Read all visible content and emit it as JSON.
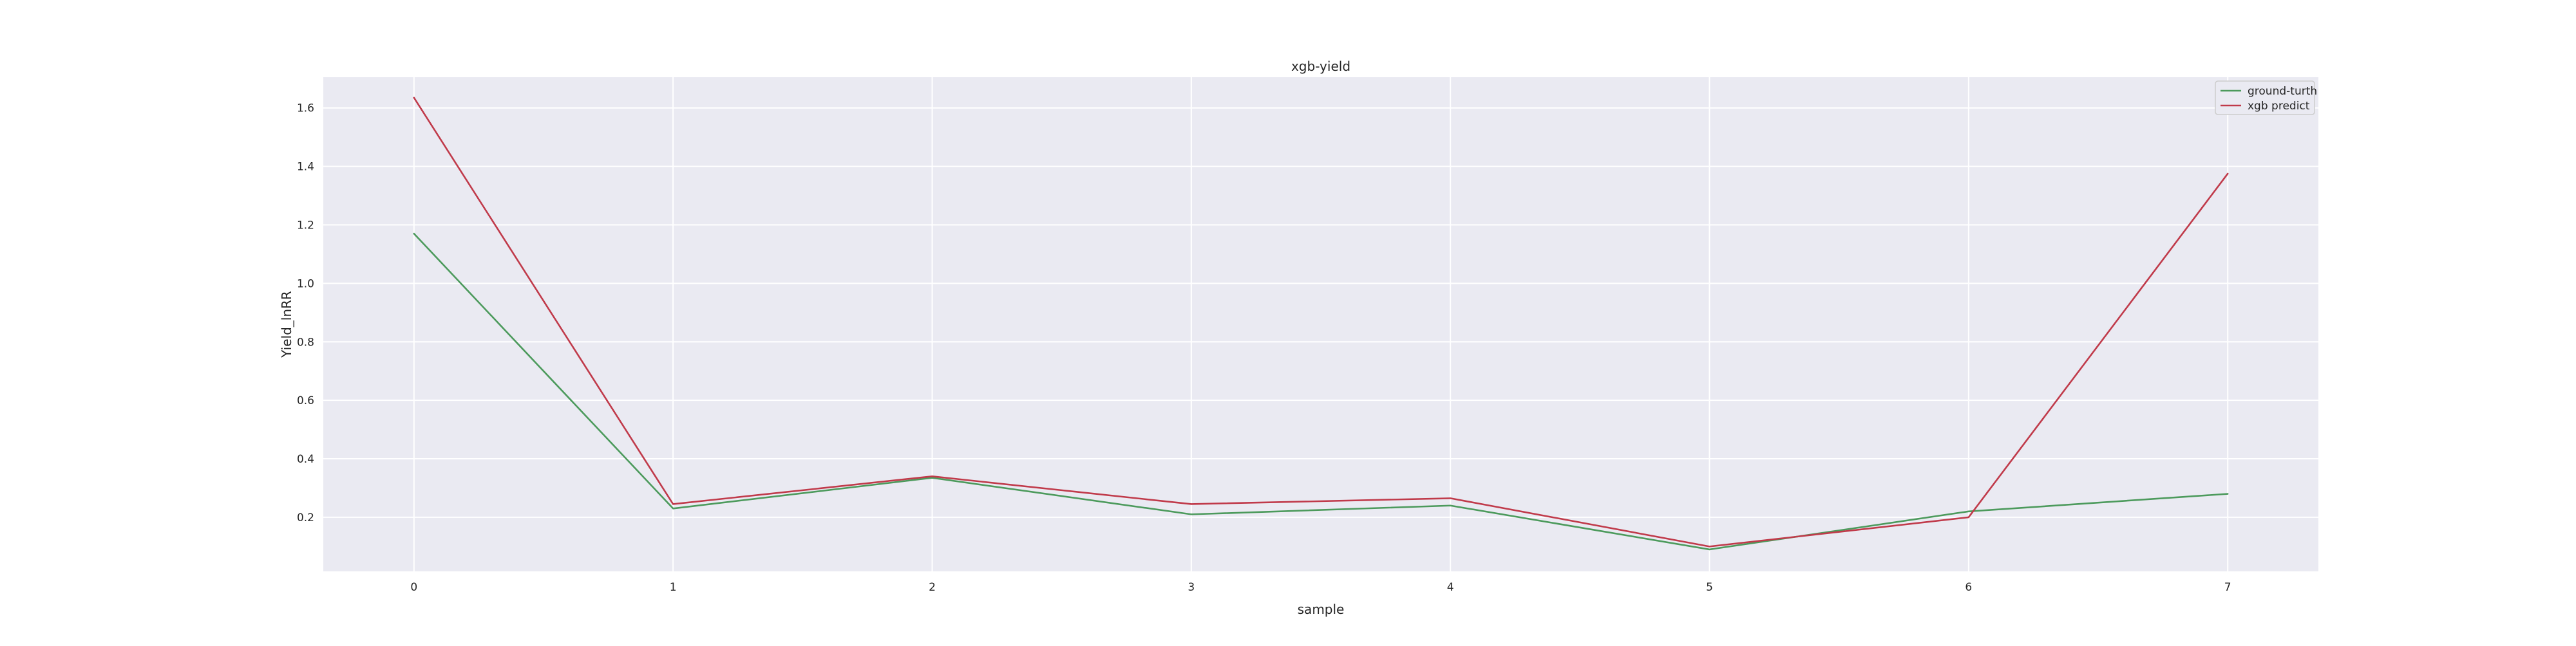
{
  "chart_data": {
    "type": "line",
    "title": "xgb-yield",
    "xlabel": "sample",
    "ylabel": "Yield_lnRR",
    "x": [
      0,
      1,
      2,
      3,
      4,
      5,
      6,
      7
    ],
    "series": [
      {
        "name": "ground-turth",
        "color": "#4c9a5c",
        "values": [
          1.17,
          0.23,
          0.335,
          0.21,
          0.24,
          0.09,
          0.22,
          0.28
        ]
      },
      {
        "name": "xgb predict",
        "color": "#c03a4a",
        "values": [
          1.635,
          0.245,
          0.34,
          0.245,
          0.265,
          0.1,
          0.2,
          1.375
        ]
      }
    ],
    "xlim": [
      -0.35,
      7.35
    ],
    "ylim": [
      0.015,
      1.705
    ],
    "xticks": [
      0,
      1,
      2,
      3,
      4,
      5,
      6,
      7
    ],
    "yticks": [
      0.2,
      0.4,
      0.6,
      0.8,
      1.0,
      1.2,
      1.4,
      1.6
    ],
    "ytick_labels": [
      "0.2",
      "0.4",
      "0.6",
      "0.8",
      "1.0",
      "1.2",
      "1.4",
      "1.6"
    ],
    "grid": true,
    "legend_position": "top-right",
    "background_color": "#eaeaf2",
    "grid_color": "#ffffff"
  }
}
